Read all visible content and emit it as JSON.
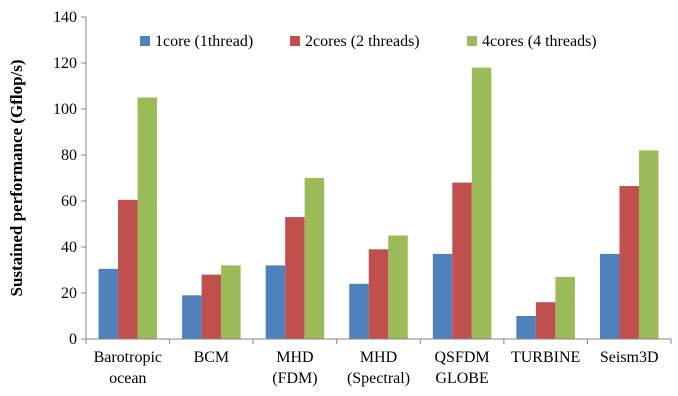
{
  "chart_data": {
    "type": "bar",
    "title": "",
    "xlabel": "",
    "ylabel": "Sustained performance (Gflop/s)",
    "ylim": [
      0,
      140
    ],
    "yticks": [
      0,
      20,
      40,
      60,
      80,
      100,
      120,
      140
    ],
    "categories": [
      [
        "Barotropic",
        "ocean"
      ],
      [
        "BCM"
      ],
      [
        "MHD",
        "(FDM)"
      ],
      [
        "MHD",
        "(Spectral)"
      ],
      [
        "QSFDM",
        "GLOBE"
      ],
      [
        "TURBINE"
      ],
      [
        "Seism3D"
      ]
    ],
    "series": [
      {
        "name": "1core (1thread)",
        "color": "#4f81bd",
        "values": [
          30.5,
          19,
          32,
          24,
          37,
          10,
          37
        ]
      },
      {
        "name": "2cores (2 threads)",
        "color": "#c0504d",
        "values": [
          60.5,
          28,
          53,
          39,
          68,
          16,
          66.5
        ]
      },
      {
        "name": "4cores (4 threads)",
        "color": "#9bbb59",
        "values": [
          105,
          32,
          70,
          45,
          118,
          27,
          82
        ]
      }
    ],
    "grid": false,
    "legend_position": "top"
  }
}
